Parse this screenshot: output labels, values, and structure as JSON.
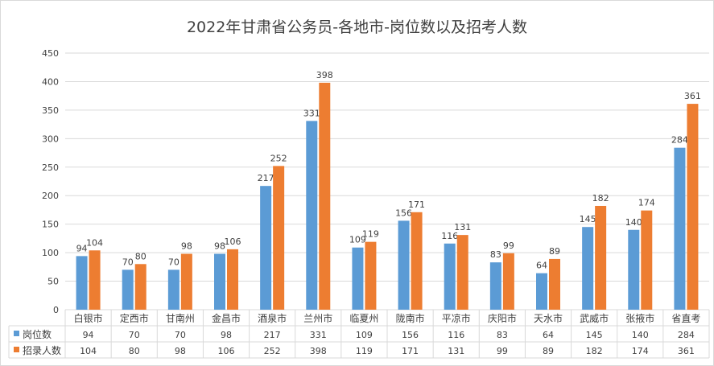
{
  "chart_data": {
    "type": "bar",
    "title": "2022年甘肃省公务员-各地市-岗位数以及招考人数",
    "categories": [
      "白银市",
      "定西市",
      "甘南州",
      "金昌市",
      "酒泉市",
      "兰州市",
      "临夏州",
      "陇南市",
      "平凉市",
      "庆阳市",
      "天水市",
      "武威市",
      "张掖市",
      "省直考"
    ],
    "series": [
      {
        "name": "岗位数",
        "color": "#5b9bd5",
        "values": [
          94,
          70,
          70,
          98,
          217,
          331,
          109,
          156,
          116,
          83,
          64,
          145,
          140,
          284
        ]
      },
      {
        "name": "招录人数",
        "color": "#ed7d31",
        "values": [
          104,
          80,
          98,
          106,
          252,
          398,
          119,
          171,
          131,
          99,
          89,
          182,
          174,
          361
        ]
      }
    ],
    "ylim": [
      0,
      450
    ],
    "yticks": [
      0,
      50,
      100,
      150,
      200,
      250,
      300,
      350,
      400,
      450
    ],
    "grid": true,
    "legend": "data-table-bottom"
  }
}
